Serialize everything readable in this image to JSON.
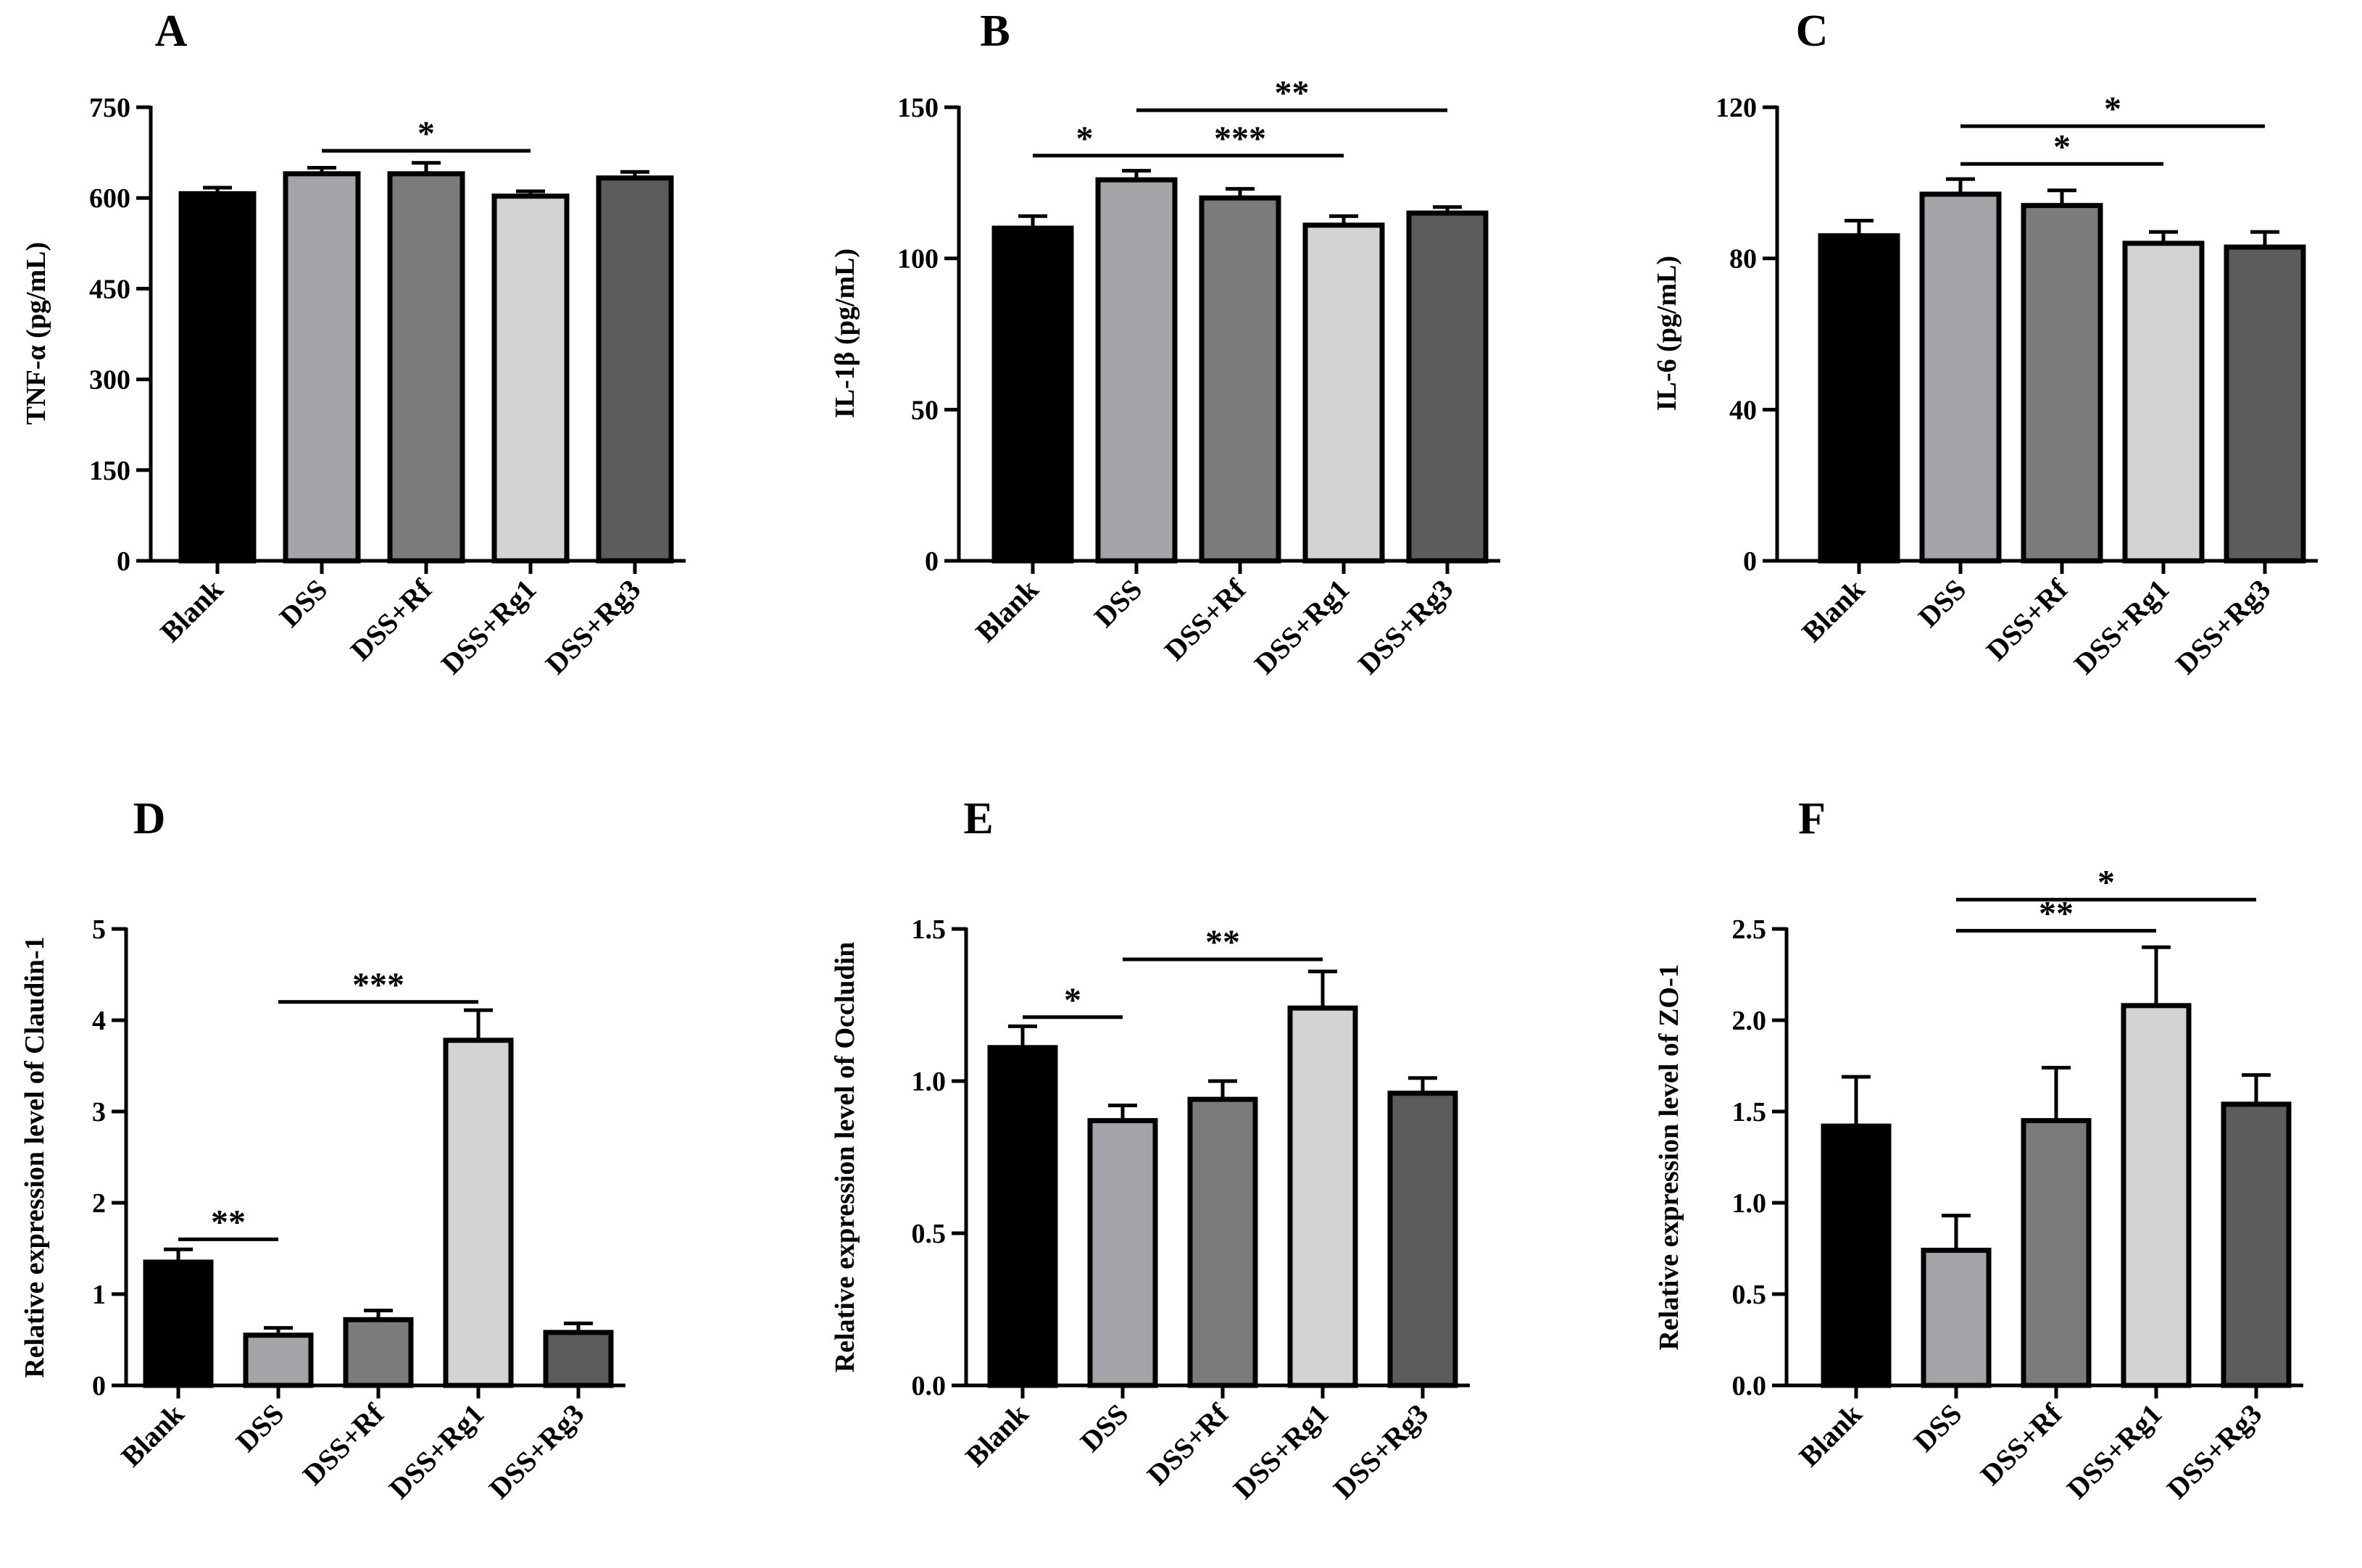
{
  "figure": {
    "description_free": true
  },
  "chart_data": [
    {
      "id": "A",
      "type": "bar",
      "panel_label": "A",
      "ylabel": "TNF-α (pg/mL)",
      "ylim": [
        0,
        750
      ],
      "yticks": [
        0,
        150,
        300,
        450,
        600,
        750
      ],
      "ytick_labels": [
        "0",
        "150",
        "300",
        "450",
        "600",
        "750"
      ],
      "categories": [
        "Blank",
        "DSS",
        "DSS+Rf",
        "DSS+Rg1",
        "DSS+Rg3"
      ],
      "values": [
        607,
        640,
        640,
        603,
        633
      ],
      "errors": [
        10,
        10,
        18,
        8,
        10
      ],
      "colors": [
        "#000000",
        "#a3a3a8",
        "#7b7b7b",
        "#d3d3d3",
        "#5c5c5c"
      ],
      "significance": [
        {
          "from": 1,
          "to": 3,
          "y": 678,
          "label": "*"
        }
      ]
    },
    {
      "id": "B",
      "type": "bar",
      "panel_label": "B",
      "ylabel": "IL-1β (pg/mL)",
      "ylim": [
        0,
        150
      ],
      "yticks": [
        0,
        50,
        100,
        150
      ],
      "ytick_labels": [
        "0",
        "50",
        "100",
        "150"
      ],
      "categories": [
        "Blank",
        "DSS",
        "DSS+Rf",
        "DSS+Rg1",
        "DSS+Rg3"
      ],
      "values": [
        110,
        126,
        120,
        111,
        115
      ],
      "errors": [
        4,
        3,
        3,
        3,
        2
      ],
      "colors": [
        "#000000",
        "#a3a3a8",
        "#7b7b7b",
        "#d3d3d3",
        "#5c5c5c"
      ],
      "significance": [
        {
          "from": 0,
          "to": 1,
          "y": 134,
          "label": "*"
        },
        {
          "from": 1,
          "to": 3,
          "y": 134,
          "label": "***"
        },
        {
          "from": 1,
          "to": 4,
          "y": 149,
          "label": "**"
        }
      ]
    },
    {
      "id": "C",
      "type": "bar",
      "panel_label": "C",
      "ylabel": "IL-6 (pg/mL)",
      "ylim": [
        0,
        120
      ],
      "yticks": [
        0,
        40,
        80,
        120
      ],
      "ytick_labels": [
        "0",
        "40",
        "80",
        "120"
      ],
      "categories": [
        "Blank",
        "DSS",
        "DSS+Rf",
        "DSS+Rg1",
        "DSS+Rg3"
      ],
      "values": [
        86,
        97,
        94,
        84,
        83
      ],
      "errors": [
        4,
        4,
        4,
        3,
        4
      ],
      "colors": [
        "#000000",
        "#a3a3a8",
        "#7b7b7b",
        "#d3d3d3",
        "#5c5c5c"
      ],
      "significance": [
        {
          "from": 1,
          "to": 3,
          "y": 105,
          "label": "*"
        },
        {
          "from": 1,
          "to": 4,
          "y": 115,
          "label": "*"
        }
      ]
    },
    {
      "id": "D",
      "type": "bar",
      "panel_label": "D",
      "ylabel": "Relative expression level of Claudin-1",
      "ylim": [
        0,
        5
      ],
      "yticks": [
        0,
        1,
        2,
        3,
        4,
        5
      ],
      "ytick_labels": [
        "0",
        "1",
        "2",
        "3",
        "4",
        "5"
      ],
      "categories": [
        "Blank",
        "DSS",
        "DSS+Rf",
        "DSS+Rg1",
        "DSS+Rg3"
      ],
      "values": [
        1.35,
        0.55,
        0.72,
        3.78,
        0.58
      ],
      "errors": [
        0.14,
        0.08,
        0.1,
        0.33,
        0.1
      ],
      "colors": [
        "#000000",
        "#a3a3a8",
        "#7b7b7b",
        "#d3d3d3",
        "#5c5c5c"
      ],
      "significance": [
        {
          "from": 0,
          "to": 1,
          "y": 1.6,
          "label": "**"
        },
        {
          "from": 1,
          "to": 3,
          "y": 4.2,
          "label": "***"
        }
      ]
    },
    {
      "id": "E",
      "type": "bar",
      "panel_label": "E",
      "ylabel": "Relative expression level of Occludin",
      "ylim": [
        0,
        1.5
      ],
      "yticks": [
        0,
        0.5,
        1.0,
        1.5
      ],
      "ytick_labels": [
        "0.0",
        "0.5",
        "1.0",
        "1.5"
      ],
      "categories": [
        "Blank",
        "DSS",
        "DSS+Rf",
        "DSS+Rg1",
        "DSS+Rg3"
      ],
      "values": [
        1.11,
        0.87,
        0.94,
        1.24,
        0.96
      ],
      "errors": [
        0.07,
        0.05,
        0.06,
        0.12,
        0.05
      ],
      "colors": [
        "#000000",
        "#a3a3a8",
        "#7b7b7b",
        "#d3d3d3",
        "#5c5c5c"
      ],
      "significance": [
        {
          "from": 0,
          "to": 1,
          "y": 1.21,
          "label": "*"
        },
        {
          "from": 1,
          "to": 3,
          "y": 1.4,
          "label": "**"
        }
      ]
    },
    {
      "id": "F",
      "type": "bar",
      "panel_label": "F",
      "ylabel": "Relative expression level of ZO-1",
      "ylim": [
        0,
        2.5
      ],
      "yticks": [
        0,
        0.5,
        1.0,
        1.5,
        2.0,
        2.5
      ],
      "ytick_labels": [
        "0.0",
        "0.5",
        "1.0",
        "1.5",
        "2.0",
        "2.5"
      ],
      "categories": [
        "Blank",
        "DSS",
        "DSS+Rf",
        "DSS+Rg1",
        "DSS+Rg3"
      ],
      "values": [
        1.42,
        0.74,
        1.45,
        2.08,
        1.54
      ],
      "errors": [
        0.27,
        0.19,
        0.29,
        0.32,
        0.16
      ],
      "colors": [
        "#000000",
        "#a3a3a8",
        "#7b7b7b",
        "#d3d3d3",
        "#5c5c5c"
      ],
      "significance": [
        {
          "from": 1,
          "to": 3,
          "y": 2.49,
          "label": "**"
        },
        {
          "from": 1,
          "to": 4,
          "y": 2.66,
          "label": "*"
        }
      ]
    }
  ]
}
